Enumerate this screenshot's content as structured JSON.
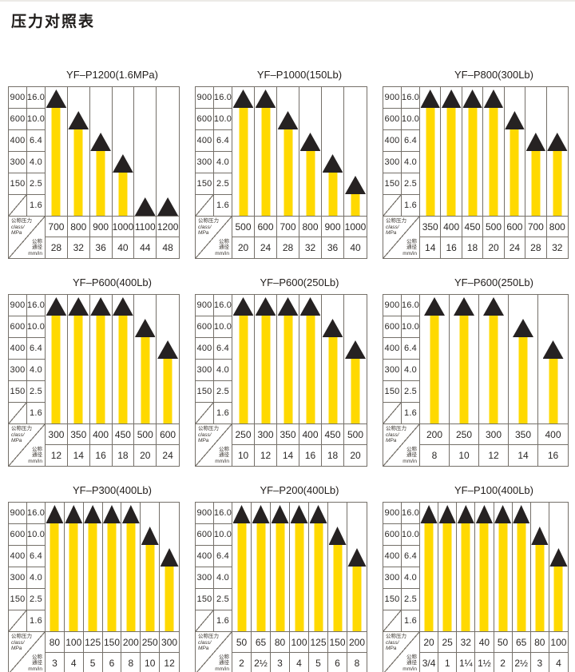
{
  "page_title": "压力对照表",
  "colors": {
    "bar_yellow": "#ffd900",
    "triangle_black": "#262222",
    "grid_line": "#757069",
    "background": "#ffffff"
  },
  "axis": {
    "class_col": [
      "900",
      "600",
      "400",
      "300",
      "150"
    ],
    "mpa_col": [
      "16.0",
      "10.0",
      "6.4",
      "4.0",
      "2.5",
      "1.6"
    ],
    "ylim_mpa": [
      1.6,
      16.0
    ]
  },
  "corner_labels": {
    "pressure": [
      "公称压力",
      "class/",
      "MPa"
    ],
    "diameter": [
      "公称",
      "通径",
      "mm/in"
    ]
  },
  "chart_data": [
    {
      "type": "bar",
      "title": "YF–P1200(1.6MPa)",
      "categories": [
        "700",
        "800",
        "900",
        "1000",
        "1100",
        "1200"
      ],
      "sizes": [
        "28",
        "32",
        "36",
        "40",
        "44",
        "48"
      ],
      "values": [
        16.0,
        10.0,
        6.4,
        4.0,
        1.6,
        1.6
      ]
    },
    {
      "type": "bar",
      "title": "YF–P1000(150Lb)",
      "categories": [
        "500",
        "600",
        "700",
        "800",
        "900",
        "1000"
      ],
      "sizes": [
        "20",
        "24",
        "28",
        "32",
        "36",
        "40"
      ],
      "values": [
        16.0,
        16.0,
        10.0,
        6.4,
        4.0,
        2.5
      ]
    },
    {
      "type": "bar",
      "title": "YF–P800(300Lb)",
      "categories": [
        "350",
        "400",
        "450",
        "500",
        "600",
        "700",
        "800"
      ],
      "sizes": [
        "14",
        "16",
        "18",
        "20",
        "24",
        "28",
        "32"
      ],
      "values": [
        16.0,
        16.0,
        16.0,
        16.0,
        10.0,
        6.4,
        6.4
      ]
    },
    {
      "type": "bar",
      "title": "YF–P600(400Lb)",
      "categories": [
        "300",
        "350",
        "400",
        "450",
        "500",
        "600"
      ],
      "sizes": [
        "12",
        "14",
        "16",
        "18",
        "20",
        "24"
      ],
      "values": [
        16.0,
        16.0,
        16.0,
        16.0,
        10.0,
        6.4
      ]
    },
    {
      "type": "bar",
      "title": "YF–P600(250Lb)",
      "categories": [
        "250",
        "300",
        "350",
        "400",
        "450",
        "500"
      ],
      "sizes": [
        "10",
        "12",
        "14",
        "16",
        "18",
        "20"
      ],
      "values": [
        16.0,
        16.0,
        16.0,
        16.0,
        10.0,
        6.4
      ]
    },
    {
      "type": "bar",
      "title": "YF–P600(250Lb)",
      "categories": [
        "200",
        "250",
        "300",
        "350",
        "400"
      ],
      "sizes": [
        "8",
        "10",
        "12",
        "14",
        "16"
      ],
      "values": [
        16.0,
        16.0,
        16.0,
        10.0,
        6.4
      ]
    },
    {
      "type": "bar",
      "title": "YF–P300(400Lb)",
      "categories": [
        "80",
        "100",
        "125",
        "150",
        "200",
        "250",
        "300"
      ],
      "sizes": [
        "3",
        "4",
        "5",
        "6",
        "8",
        "10",
        "12"
      ],
      "values": [
        16.0,
        16.0,
        16.0,
        16.0,
        16.0,
        10.0,
        6.4
      ]
    },
    {
      "type": "bar",
      "title": "YF–P200(400Lb)",
      "categories": [
        "50",
        "65",
        "80",
        "100",
        "125",
        "150",
        "200"
      ],
      "sizes": [
        "2",
        "2½",
        "3",
        "4",
        "5",
        "6",
        "8"
      ],
      "values": [
        16.0,
        16.0,
        16.0,
        16.0,
        16.0,
        10.0,
        6.4
      ]
    },
    {
      "type": "bar",
      "title": "YF–P100(400Lb)",
      "categories": [
        "20",
        "25",
        "32",
        "40",
        "50",
        "65",
        "80",
        "100"
      ],
      "sizes": [
        "3/4",
        "1",
        "1¼",
        "1½",
        "2",
        "2½",
        "3",
        "4"
      ],
      "values": [
        16.0,
        16.0,
        16.0,
        16.0,
        16.0,
        16.0,
        10.0,
        6.4
      ]
    }
  ]
}
